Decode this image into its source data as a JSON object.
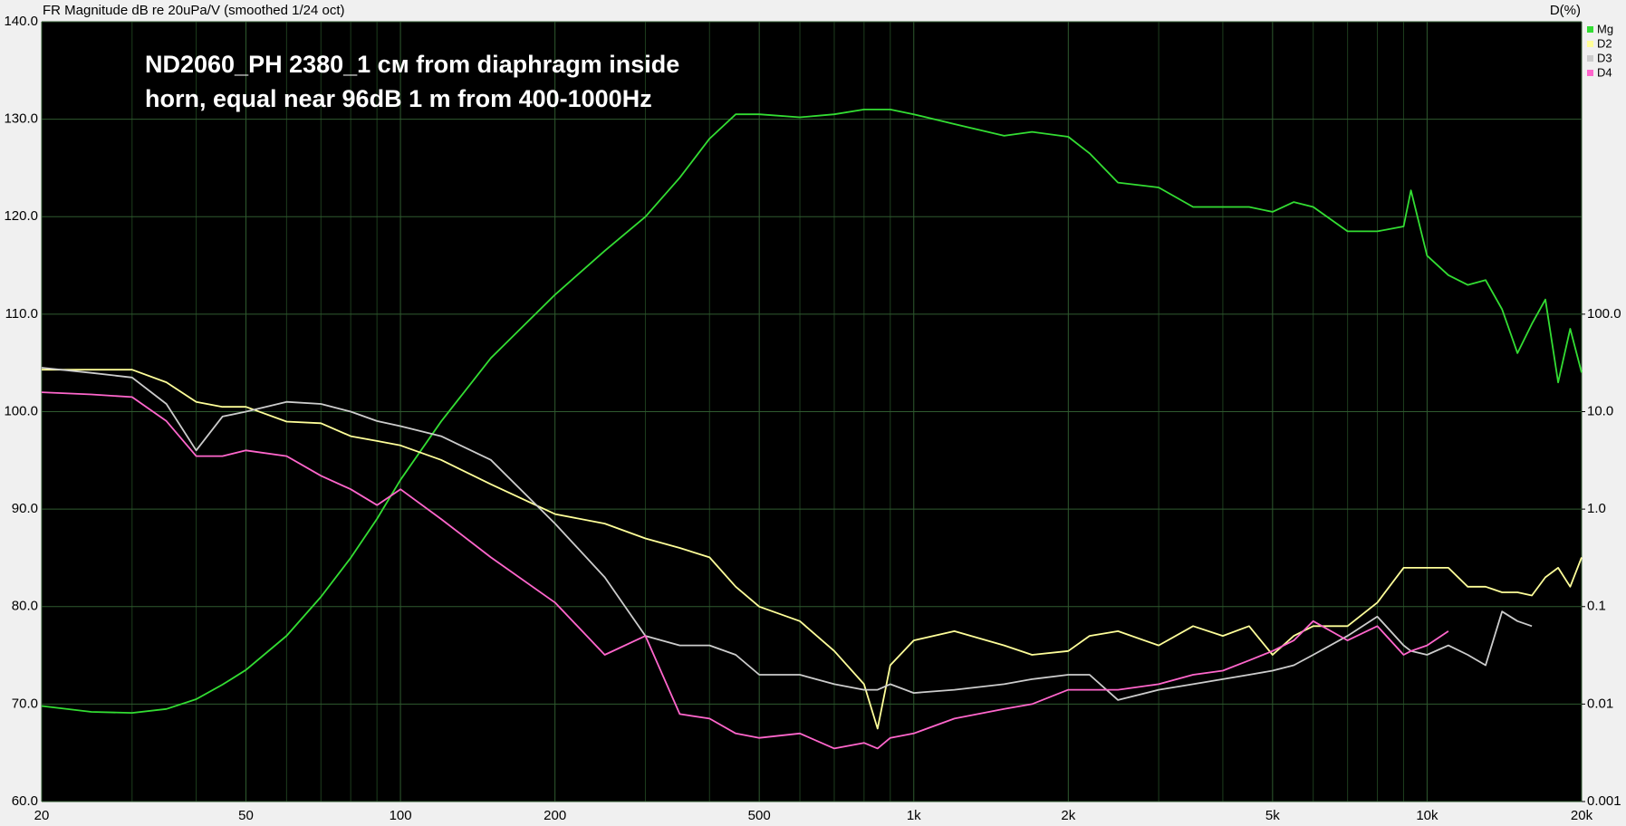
{
  "chart_data": {
    "type": "line",
    "title": "FR Magnitude dB re 20uPa/V (smoothed 1/24 oct)",
    "y2_label": "D(%)",
    "annotation": [
      "ND2060_PH 2380_1 см from diaphragm inside",
      "horn, equal near 96dB 1 m from 400-1000Hz"
    ],
    "x": [
      20,
      25,
      30,
      35,
      40,
      45,
      50,
      60,
      70,
      80,
      90,
      100,
      120,
      150,
      200,
      250,
      300,
      350,
      400,
      450,
      500,
      600,
      700,
      800,
      850,
      900,
      1000,
      1200,
      1500,
      1700,
      2000,
      2200,
      2500,
      3000,
      3500,
      4000,
      4500,
      5000,
      5500,
      6000,
      7000,
      8000,
      9000,
      9300,
      10000,
      11000,
      12000,
      13000,
      14000,
      15000,
      16000,
      17000,
      18000,
      19000,
      20000
    ],
    "xlog": true,
    "xlim": [
      20,
      20000
    ],
    "xticks": [
      20,
      50,
      100,
      200,
      500,
      {
        "value": 1000,
        "label": "1k"
      },
      {
        "value": 2000,
        "label": "2k"
      },
      {
        "value": 5000,
        "label": "5k"
      },
      {
        "value": 10000,
        "label": "10k"
      },
      {
        "value": 20000,
        "label": "20k"
      }
    ],
    "xminorticks": [
      30,
      40,
      60,
      70,
      80,
      90,
      300,
      400,
      600,
      700,
      800,
      900,
      3000,
      4000,
      6000,
      7000,
      8000,
      9000
    ],
    "ylim": [
      60,
      140
    ],
    "yticks": [
      {
        "value": 60,
        "label": "60.0"
      },
      {
        "value": 70,
        "label": "70.0"
      },
      {
        "value": 80,
        "label": "80.0"
      },
      {
        "value": 90,
        "label": "90.0"
      },
      {
        "value": 100,
        "label": "100.0"
      },
      {
        "value": 110,
        "label": "110.0"
      },
      {
        "value": 120,
        "label": "120.0"
      },
      {
        "value": 130,
        "label": "130.0"
      },
      {
        "value": 140,
        "label": "140.0"
      }
    ],
    "y2log": true,
    "y2lim": [
      0.001,
      100000
    ],
    "y2ticks": [
      0.001,
      0.01,
      0.1,
      {
        "value": 1,
        "label": "1.0"
      },
      {
        "value": 10,
        "label": "10.0"
      },
      {
        "value": 100,
        "label": "100.0"
      }
    ],
    "grid": true,
    "legend": "top-right",
    "series": [
      {
        "name": "Mg",
        "color": "#33dd33",
        "values": [
          69.8,
          69.2,
          69.1,
          69.5,
          70.5,
          72,
          73.5,
          77,
          81,
          85,
          89,
          93,
          99,
          105.5,
          112,
          116.5,
          120,
          124,
          128,
          130.5,
          130.5,
          130.2,
          130.5,
          131,
          131,
          131,
          130.5,
          129.5,
          128.3,
          128.7,
          128.2,
          126.5,
          123.5,
          123,
          121,
          121,
          121,
          120.5,
          121.5,
          121,
          118.5,
          118.5,
          119,
          122.7,
          116,
          114,
          113,
          113.5,
          110.5,
          106,
          109,
          111.5,
          103,
          108.5,
          104
        ]
      },
      {
        "name": "D2",
        "color": "#ffff99",
        "axis": "y2",
        "values": [
          26.9,
          26.9,
          26.9,
          20,
          12.6,
          11.2,
          11.2,
          7.9,
          7.6,
          5.6,
          5,
          4.5,
          3.2,
          1.8,
          0.89,
          0.71,
          0.5,
          0.4,
          0.32,
          0.16,
          0.1,
          0.071,
          0.035,
          0.016,
          0.0056,
          0.025,
          0.045,
          0.056,
          0.04,
          0.032,
          0.035,
          0.05,
          0.056,
          0.04,
          0.063,
          0.05,
          0.063,
          0.032,
          0.05,
          0.063,
          0.063,
          0.11,
          0.25,
          0.25,
          0.25,
          0.25,
          0.16,
          0.16,
          0.14,
          0.14,
          0.13,
          0.2,
          0.25,
          0.16,
          0.32
        ]
      },
      {
        "name": "D3",
        "color": "#cccccc",
        "axis": "y2",
        "values": [
          28.2,
          25,
          22.4,
          12,
          4,
          8.9,
          10,
          12.6,
          12,
          10,
          8,
          7.1,
          5.6,
          3.2,
          0.71,
          0.2,
          0.05,
          0.04,
          0.04,
          0.032,
          0.02,
          0.02,
          0.016,
          0.014,
          0.014,
          0.016,
          0.013,
          0.014,
          0.016,
          0.018,
          0.02,
          0.02,
          0.011,
          0.014,
          0.016,
          0.018,
          0.02,
          0.022,
          0.025,
          0.032,
          0.05,
          0.079,
          0.04,
          0.035,
          0.032,
          0.04,
          0.032,
          0.025,
          0.089,
          0.071,
          0.063,
          null,
          null,
          null,
          null
        ]
      },
      {
        "name": "D4",
        "color": "#ff66cc",
        "axis": "y2",
        "values": [
          15.8,
          15,
          14.1,
          8,
          3.5,
          3.5,
          4,
          3.5,
          2.2,
          1.6,
          1.1,
          1.6,
          0.79,
          0.32,
          0.11,
          0.032,
          0.05,
          0.0079,
          0.0071,
          0.005,
          0.0045,
          0.005,
          0.0035,
          0.004,
          0.0035,
          0.0045,
          0.005,
          0.0071,
          0.0089,
          0.01,
          0.014,
          0.014,
          0.014,
          0.016,
          0.02,
          0.022,
          0.028,
          0.035,
          0.045,
          0.071,
          0.045,
          0.063,
          0.032,
          0.035,
          0.04,
          0.056,
          null,
          null,
          null,
          null,
          null,
          null,
          null,
          null,
          null
        ]
      }
    ]
  }
}
